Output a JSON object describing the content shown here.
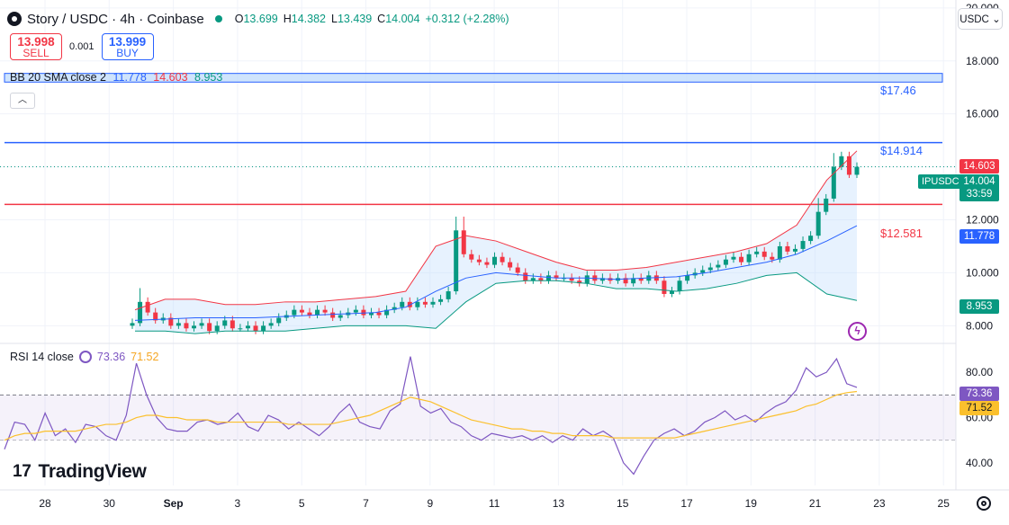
{
  "header": {
    "title": "Story / USDC · 4h · Coinbase",
    "ohlc": {
      "o_label": "O",
      "o": "13.699",
      "h_label": "H",
      "h": "14.382",
      "l_label": "L",
      "l": "13.439",
      "c_label": "C",
      "c": "14.004",
      "change": "+0.312 (+2.28%)"
    },
    "status_color": "#089981"
  },
  "trade": {
    "sell_price": "13.998",
    "sell_label": "SELL",
    "spread": "0.001",
    "buy_price": "13.999",
    "buy_label": "BUY"
  },
  "bb_legend": {
    "label": "BB 20 SMA close 2",
    "basis": "11.778",
    "upper": "14.603",
    "lower": "8.953"
  },
  "rsi_legend": {
    "label": "RSI 14 close",
    "rsi": "73.36",
    "ma": "71.52"
  },
  "currency": "USDC",
  "brand": {
    "mark": "17",
    "name": "TradingView"
  },
  "symbol_tag": "IPUSDC",
  "price_tags": {
    "upper": "14.603",
    "last": "14.004",
    "countdown": "33:59",
    "basis": "11.778",
    "lower": "8.953",
    "rsi": "73.36",
    "rsi_ma": "71.52"
  },
  "levels": {
    "zone_label": "$17.46",
    "resistance_label": "$14.914",
    "support_label": "$12.581"
  },
  "icons": {
    "logo": "story-logo-icon",
    "settings": "gear-icon",
    "alert": "flash-icon",
    "rsi": "refresh-icon"
  },
  "colors": {
    "up": "#089981",
    "down": "#f23645",
    "bb_basis": "#2962ff",
    "bb_upper": "#f23645",
    "bb_lower": "#089981",
    "bb_fill": "#bbd9fb",
    "rsi": "#7e57c2",
    "rsi_ma": "#fbc02d",
    "zone": "#bbd9fb",
    "resistance": "#2962ff",
    "support": "#f23645"
  },
  "chart_data": [
    {
      "type": "candlestick",
      "title": "Story / USDC · 4h · Coinbase",
      "x_ticks": [
        "28",
        "30",
        "Sep",
        "3",
        "5",
        "7",
        "9",
        "11",
        "13",
        "15",
        "17",
        "19",
        "21",
        "23",
        "25"
      ],
      "y_ticks": [
        "8.000",
        "10.000",
        "12.000",
        "14.000",
        "16.000",
        "18.000",
        "20.000"
      ],
      "ylim": [
        7.4,
        20.3
      ],
      "horizontal_levels": [
        {
          "label": "$17.46",
          "type": "zone",
          "from": 17.2,
          "to": 17.46
        },
        {
          "label": "$14.914",
          "type": "line",
          "value": 14.914
        },
        {
          "label": "$12.581",
          "type": "line",
          "value": 12.581
        }
      ],
      "ohlc_close_series": [
        8.1,
        8.9,
        8.5,
        8.2,
        8.3,
        8.0,
        8.1,
        7.9,
        8.0,
        8.1,
        7.8,
        8.0,
        8.2,
        7.9,
        7.9,
        8.0,
        7.8,
        8.0,
        8.1,
        8.3,
        8.4,
        8.6,
        8.5,
        8.4,
        8.6,
        8.5,
        8.3,
        8.4,
        8.5,
        8.6,
        8.4,
        8.5,
        8.4,
        8.6,
        8.7,
        8.9,
        8.7,
        8.9,
        8.8,
        8.9,
        9.0,
        9.3,
        11.6,
        10.7,
        10.5,
        10.4,
        10.3,
        10.6,
        10.4,
        10.2,
        10.0,
        9.7,
        9.8,
        9.7,
        9.9,
        9.8,
        9.8,
        9.7,
        9.6,
        9.9,
        9.7,
        9.8,
        9.7,
        9.8,
        9.6,
        9.8,
        9.7,
        9.9,
        9.7,
        9.2,
        9.3,
        9.7,
        9.9,
        10.0,
        10.1,
        10.2,
        10.3,
        10.5,
        10.6,
        10.4,
        10.7,
        10.8,
        10.6,
        10.5,
        11.0,
        10.8,
        10.9,
        11.2,
        11.4,
        12.3,
        12.8,
        14.0,
        14.4,
        13.7,
        14.0
      ],
      "bollinger": {
        "basis": [
          8.2,
          8.25,
          8.3,
          8.3,
          8.3,
          8.35,
          8.4,
          8.45,
          8.5,
          8.7,
          9.3,
          9.8,
          10.0,
          9.9,
          9.8,
          9.8,
          9.75,
          9.8,
          9.85,
          10.0,
          10.2,
          10.4,
          10.7,
          11.2,
          11.778
        ],
        "upper": [
          8.6,
          9.0,
          9.0,
          8.8,
          8.8,
          8.9,
          8.9,
          9.0,
          9.1,
          9.3,
          11.0,
          11.4,
          11.2,
          10.8,
          10.4,
          10.1,
          10.1,
          10.2,
          10.4,
          10.6,
          10.8,
          11.1,
          11.8,
          13.5,
          14.603
        ],
        "lower": [
          7.8,
          7.8,
          7.7,
          7.8,
          7.8,
          7.8,
          7.9,
          8.0,
          8.0,
          8.0,
          7.9,
          8.9,
          9.6,
          9.7,
          9.7,
          9.6,
          9.4,
          9.4,
          9.3,
          9.4,
          9.6,
          9.9,
          10.0,
          9.2,
          8.953
        ]
      }
    },
    {
      "type": "line",
      "title": "RSI 14 close",
      "y_ticks": [
        "40.00",
        "60.00",
        "80.00"
      ],
      "ylim": [
        30,
        92
      ],
      "band": [
        50,
        70
      ],
      "series": [
        {
          "name": "RSI",
          "values": [
            46,
            58,
            57,
            50,
            62,
            52,
            55,
            49,
            57,
            56,
            52,
            50,
            61,
            84,
            70,
            60,
            55,
            54,
            54,
            58,
            59,
            57,
            58,
            62,
            56,
            54,
            61,
            59,
            55,
            58,
            55,
            52,
            56,
            62,
            66,
            58,
            56,
            55,
            63,
            66,
            87,
            65,
            62,
            64,
            58,
            56,
            52,
            50,
            53,
            52,
            51,
            52,
            50,
            52,
            49,
            52,
            50,
            55,
            52,
            54,
            51,
            40,
            35,
            43,
            50,
            53,
            55,
            52,
            54,
            58,
            60,
            63,
            59,
            61,
            58,
            62,
            65,
            67,
            72,
            82,
            78,
            80,
            86,
            75,
            73.36
          ]
        },
        {
          "name": "MA",
          "values": [
            50,
            52,
            53,
            53,
            54,
            54,
            54,
            54,
            55,
            56,
            57,
            57,
            58,
            60,
            61,
            61,
            60,
            60,
            59,
            59,
            59,
            58,
            58,
            58,
            58,
            58,
            58,
            58,
            57,
            57,
            57,
            57,
            57,
            58,
            59,
            60,
            61,
            63,
            65,
            67,
            69,
            68,
            67,
            65,
            63,
            61,
            59,
            58,
            57,
            56,
            55,
            55,
            54,
            54,
            53,
            53,
            52,
            52,
            52,
            52,
            51,
            51,
            51,
            51,
            51,
            51,
            51,
            52,
            53,
            54,
            55,
            56,
            57,
            58,
            59,
            60,
            61,
            62,
            63,
            65,
            66,
            68,
            70,
            71,
            71.52
          ]
        }
      ]
    }
  ]
}
